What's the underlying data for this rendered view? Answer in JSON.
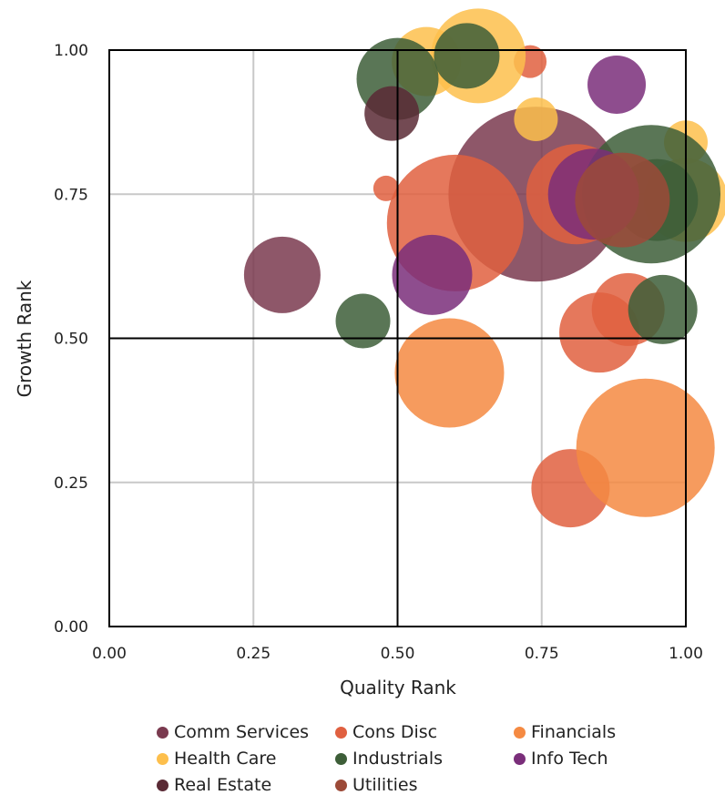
{
  "chart_data": {
    "type": "scatter",
    "subtype": "bubble",
    "xlabel": "Quality Rank",
    "ylabel": "Growth Rank",
    "xlim": [
      0,
      1
    ],
    "ylim": [
      0,
      1
    ],
    "xticks": [
      "0.00",
      "0.25",
      "0.50",
      "0.75",
      "1.00"
    ],
    "yticks": [
      "0.00",
      "0.25",
      "0.50",
      "0.75",
      "1.00"
    ],
    "grid": true,
    "quadrant_lines": [
      0.5,
      0.5
    ],
    "legend_position": "bottom",
    "series": [
      {
        "name": "Comm Services",
        "color": "#7a3a4f",
        "points": [
          {
            "x": 0.74,
            "y": 0.75,
            "r": 96
          },
          {
            "x": 0.3,
            "y": 0.61,
            "r": 42
          }
        ]
      },
      {
        "name": "Cons Disc",
        "color": "#e06040",
        "points": [
          {
            "x": 0.6,
            "y": 0.7,
            "r": 75
          },
          {
            "x": 0.81,
            "y": 0.75,
            "r": 55
          },
          {
            "x": 0.85,
            "y": 0.51,
            "r": 44
          },
          {
            "x": 0.9,
            "y": 0.55,
            "r": 40
          },
          {
            "x": 0.8,
            "y": 0.24,
            "r": 43
          },
          {
            "x": 0.73,
            "y": 0.98,
            "r": 18
          },
          {
            "x": 0.48,
            "y": 0.76,
            "r": 14
          }
        ]
      },
      {
        "name": "Financials",
        "color": "#f58a42",
        "points": [
          {
            "x": 0.93,
            "y": 0.31,
            "r": 76
          },
          {
            "x": 0.59,
            "y": 0.44,
            "r": 60
          }
        ]
      },
      {
        "name": "Health Care",
        "color": "#fdbf4c",
        "points": [
          {
            "x": 0.64,
            "y": 0.99,
            "r": 52
          },
          {
            "x": 0.55,
            "y": 0.98,
            "r": 38
          },
          {
            "x": 1.0,
            "y": 0.74,
            "r": 46
          },
          {
            "x": 1.0,
            "y": 0.84,
            "r": 24
          },
          {
            "x": 0.74,
            "y": 0.88,
            "r": 24
          }
        ]
      },
      {
        "name": "Industrials",
        "color": "#3d5e38",
        "points": [
          {
            "x": 0.94,
            "y": 0.75,
            "r": 76
          },
          {
            "x": 0.95,
            "y": 0.74,
            "r": 45
          },
          {
            "x": 0.5,
            "y": 0.95,
            "r": 45
          },
          {
            "x": 0.62,
            "y": 0.99,
            "r": 36
          },
          {
            "x": 0.96,
            "y": 0.55,
            "r": 38
          },
          {
            "x": 0.44,
            "y": 0.53,
            "r": 30
          }
        ]
      },
      {
        "name": "Info Tech",
        "color": "#7a2e7a",
        "points": [
          {
            "x": 0.84,
            "y": 0.75,
            "r": 50
          },
          {
            "x": 0.56,
            "y": 0.61,
            "r": 44
          },
          {
            "x": 0.88,
            "y": 0.94,
            "r": 32
          }
        ]
      },
      {
        "name": "Real Estate",
        "color": "#5a2a35",
        "points": [
          {
            "x": 0.49,
            "y": 0.89,
            "r": 30
          }
        ]
      },
      {
        "name": "Utilities",
        "color": "#9c4a38",
        "points": [
          {
            "x": 0.89,
            "y": 0.74,
            "r": 52
          }
        ]
      }
    ]
  }
}
